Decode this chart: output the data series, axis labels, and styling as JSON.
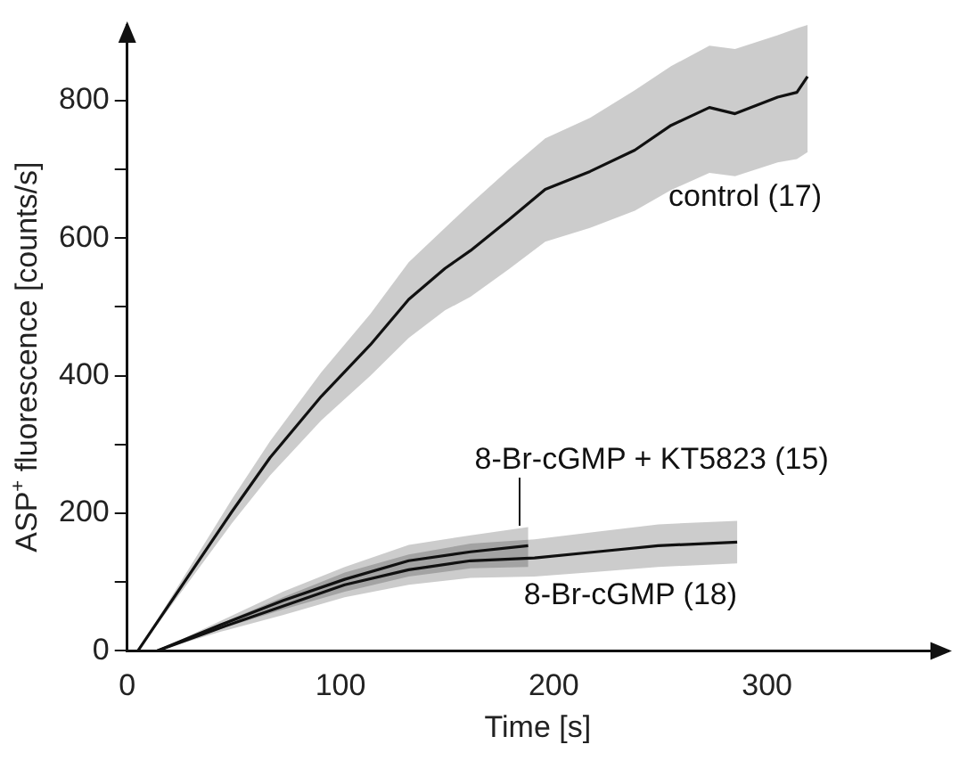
{
  "chart_data": {
    "type": "line",
    "xlabel": "Time [s]",
    "ylabel": "ASP$^{+}$ fluorescence [counts/s]",
    "xlim": [
      0,
      385
    ],
    "ylim": [
      0,
      910
    ],
    "xticks": [
      0,
      100,
      200,
      300
    ],
    "yticks": [
      0,
      {
        "value": 100,
        "label": null
      },
      200,
      {
        "value": 300,
        "label": null
      },
      400,
      {
        "value": 500,
        "label": null
      },
      600,
      {
        "value": 700,
        "label": null
      },
      800
    ],
    "grid": false,
    "legend": false,
    "marker": "none",
    "line_style": "solid",
    "series": [
      {
        "name": "control (17)",
        "color": "#111111",
        "x": [
          5,
          49,
          67,
          91,
          114,
          132,
          149,
          161,
          179,
          196,
          217,
          238,
          255,
          273,
          285,
          305,
          314,
          319
        ],
        "values": [
          0,
          202,
          281,
          370,
          445,
          511,
          556,
          582,
          627,
          671,
          697,
          728,
          764,
          790,
          781,
          805,
          812,
          835
        ],
        "lower": [
          0,
          185,
          255,
          335,
          400,
          455,
          495,
          515,
          555,
          595,
          615,
          640,
          670,
          695,
          690,
          710,
          715,
          725
        ],
        "upper": [
          0,
          220,
          305,
          405,
          490,
          565,
          615,
          650,
          700,
          745,
          775,
          815,
          850,
          880,
          875,
          895,
          905,
          910
        ]
      },
      {
        "name": "8-Br-cGMP (18)",
        "color": "#111111",
        "x": [
          14,
          44,
          73,
          102,
          132,
          161,
          191,
          220,
          249,
          286
        ],
        "values": [
          0,
          34,
          65,
          96,
          118,
          131,
          135,
          144,
          153,
          158
        ],
        "lower": [
          0,
          28,
          52,
          78,
          96,
          106,
          108,
          115,
          122,
          127
        ],
        "upper": [
          0,
          40,
          78,
          114,
          140,
          156,
          162,
          173,
          184,
          189
        ]
      },
      {
        "name": "8-Br-cGMP + KT5823 (15)",
        "color": "#111111",
        "x": [
          14,
          44,
          73,
          102,
          132,
          161,
          188
        ],
        "values": [
          0,
          38,
          73,
          104,
          131,
          144,
          153
        ],
        "lower": [
          0,
          32,
          60,
          86,
          108,
          120,
          122
        ],
        "upper": [
          0,
          44,
          86,
          122,
          154,
          168,
          180
        ]
      }
    ]
  }
}
